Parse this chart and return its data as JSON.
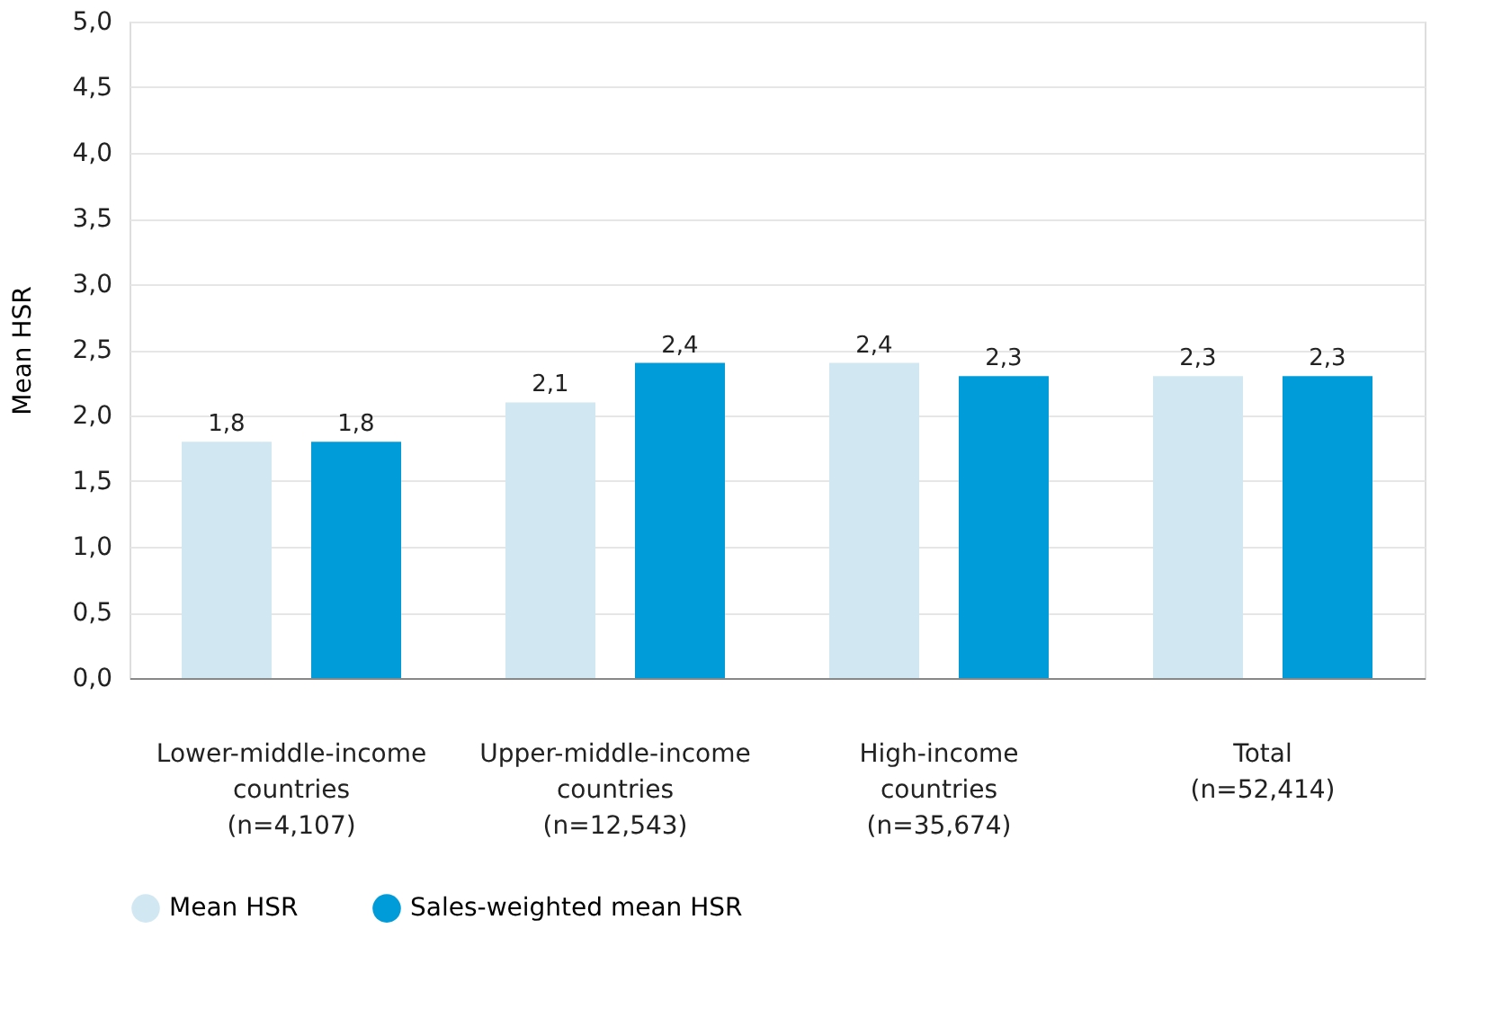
{
  "chart_data": {
    "type": "bar",
    "categories": [
      "Lower-middle-income\ncountries\n(n=4,107)",
      "Upper-middle-income\ncountries\n(n=12,543)",
      "High-income\ncountries\n(n=35,674)",
      "Total\n\n(n=52,414)"
    ],
    "series": [
      {
        "name": "Mean HSR",
        "color": "#d1e8f2",
        "values": [
          1.8,
          2.1,
          2.4,
          2.3
        ],
        "value_labels": [
          "1,8",
          "2,1",
          "2,4",
          "2,3"
        ]
      },
      {
        "name": "Sales-weighted mean HSR",
        "color": "#009bd9",
        "values": [
          1.8,
          2.4,
          2.3,
          2.3
        ],
        "value_labels": [
          "1,8",
          "2,4",
          "2,3",
          "2,3"
        ]
      }
    ],
    "ylabel": "Mean HSR",
    "ylim": [
      0,
      5
    ],
    "yticks": [
      {
        "value": 0,
        "label": "0,0"
      },
      {
        "value": 0.5,
        "label": "0,5"
      },
      {
        "value": 1,
        "label": "1,0"
      },
      {
        "value": 1.5,
        "label": "1,5"
      },
      {
        "value": 2,
        "label": "2,0"
      },
      {
        "value": 2.5,
        "label": "2,5"
      },
      {
        "value": 3,
        "label": "3,0"
      },
      {
        "value": 3.5,
        "label": "3,5"
      },
      {
        "value": 4,
        "label": "4,0"
      },
      {
        "value": 4.5,
        "label": "4,5"
      },
      {
        "value": 5,
        "label": "5,0"
      }
    ],
    "grid": "y",
    "legend": "bottom"
  }
}
